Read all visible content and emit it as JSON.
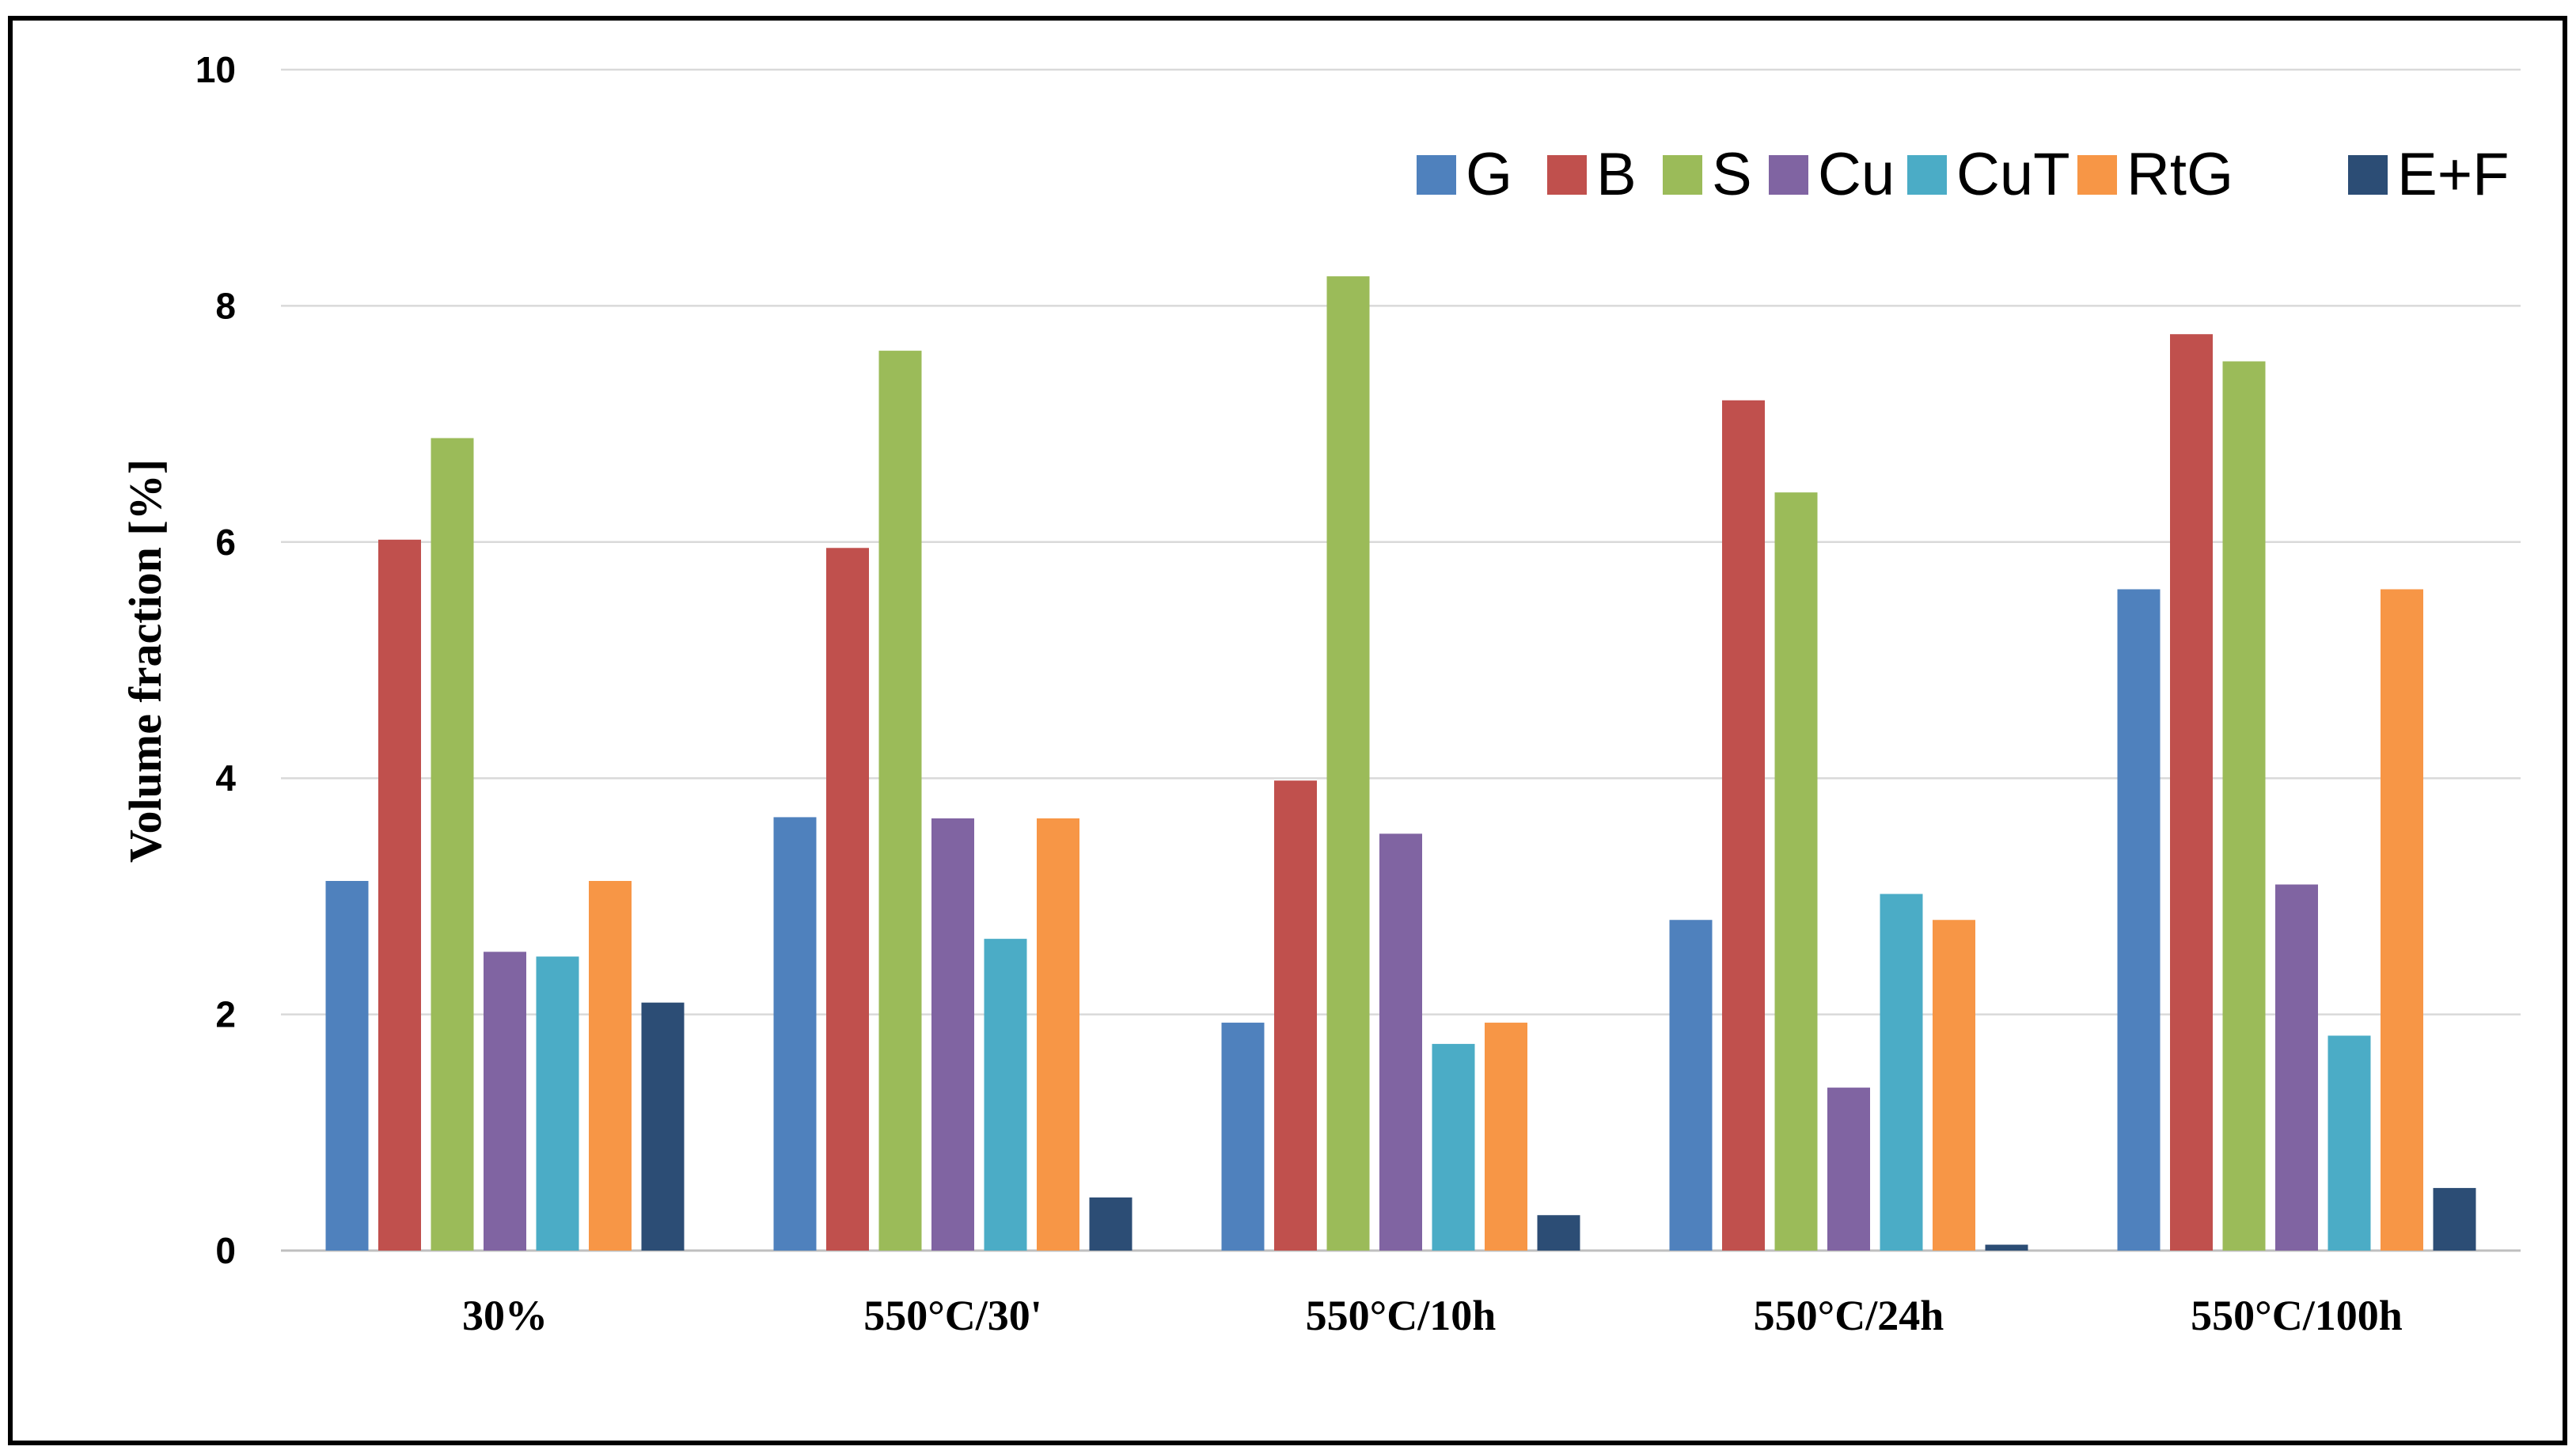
{
  "chart_data": {
    "type": "bar",
    "title": "",
    "xlabel": "",
    "ylabel": "Volume fraction [%]",
    "ylim": [
      0,
      10
    ],
    "yticks": [
      "0",
      "2",
      "4",
      "6",
      "8",
      "10"
    ],
    "grid": true,
    "legend_position": "top-right",
    "categories": [
      "30%",
      "550°C/30'",
      "550°C/10h",
      "550°C/24h",
      "550°C/100h"
    ],
    "series": [
      {
        "name": "G",
        "color": "#4F81BD",
        "values": [
          3.13,
          3.67,
          1.93,
          2.8,
          5.6
        ]
      },
      {
        "name": "B",
        "color": "#C0504D",
        "values": [
          6.02,
          5.95,
          3.98,
          7.2,
          7.76
        ]
      },
      {
        "name": "S",
        "color": "#9BBB59",
        "values": [
          6.88,
          7.62,
          8.25,
          6.42,
          7.53
        ]
      },
      {
        "name": "Cu",
        "color": "#8064A2",
        "values": [
          2.53,
          3.66,
          3.53,
          1.38,
          3.1
        ]
      },
      {
        "name": "CuT",
        "color": "#4BACC6",
        "values": [
          2.49,
          2.64,
          1.75,
          3.02,
          1.82
        ]
      },
      {
        "name": "RtG",
        "color": "#F79646",
        "values": [
          3.13,
          3.66,
          1.93,
          2.8,
          5.6
        ]
      },
      {
        "name": "E+F",
        "color": "#2C4D75",
        "values": [
          2.1,
          0.45,
          0.3,
          0.05,
          0.53
        ]
      }
    ]
  }
}
